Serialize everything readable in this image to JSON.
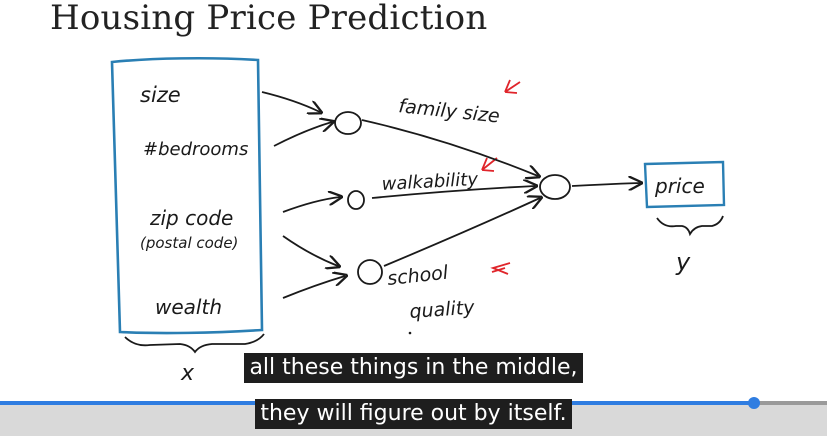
{
  "slide": {
    "title": "Housing Price Prediction"
  },
  "diagram": {
    "inputs": [
      "size",
      "#bedrooms",
      "zip code",
      "(postal code)",
      "wealth"
    ],
    "inputs_vector_label": "x",
    "hidden_units": [
      "family size",
      "walkability",
      "school",
      "quality"
    ],
    "output": "price",
    "output_label": "y",
    "ink_color": "#1a1a1a",
    "highlight_color": "#e0252b"
  },
  "subtitles": {
    "line1": "all these things in the middle,",
    "line2": "they will figure out by itself."
  },
  "player": {
    "progress_fraction": 0.912,
    "accent_color": "#2f7de1"
  }
}
